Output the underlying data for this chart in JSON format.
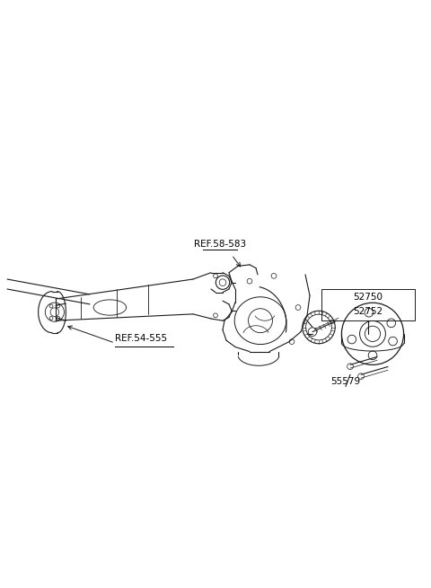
{
  "bg_color": "#ffffff",
  "line_color": "#1a1a1a",
  "label_color": "#000000",
  "labels": {
    "ref_58_583": "REF.58-583",
    "ref_54_555": "REF.54-555",
    "part_52750": "52750",
    "part_52752": "52752",
    "part_55579": "55579"
  },
  "label_fontsize": 7.5,
  "fig_width": 4.8,
  "fig_height": 6.55,
  "dpi": 100
}
